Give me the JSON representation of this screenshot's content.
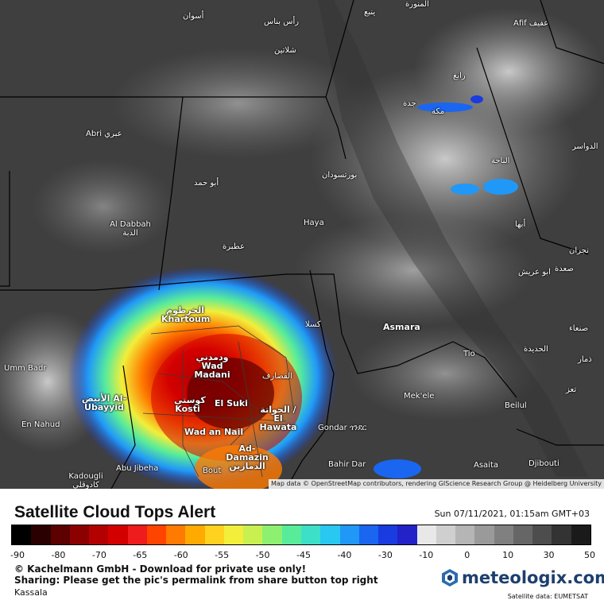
{
  "map": {
    "attribution": "Map data © OpenStreetMap contributors, rendering GIScience Research Group @ Heidelberg University",
    "cities": [
      {
        "label": "أسوان"
      },
      {
        "label": "رأس بناس"
      },
      {
        "label": "شلاتين"
      },
      {
        "label": "ينبع"
      },
      {
        "label": "المنورة"
      },
      {
        "label": "Afif عفيف"
      },
      {
        "label": "Abri عبري"
      },
      {
        "label": "أبو حمد"
      },
      {
        "label": "Al Dabbah الدبة"
      },
      {
        "label": "بورتسودان"
      },
      {
        "label": "Haya"
      },
      {
        "label": "عطبرة"
      },
      {
        "label": "الخرطوم Khartoum"
      },
      {
        "label": "كسلا"
      },
      {
        "label": "Asmara"
      },
      {
        "label": "ودمدني Wad Madani"
      },
      {
        "label": "القضارف"
      },
      {
        "label": "Umm Badr"
      },
      {
        "label": "الأبيض Al-Ubayyid"
      },
      {
        "label": "كوستي Kosti"
      },
      {
        "label": "El Suki"
      },
      {
        "label": "الحواتة / El Hawata"
      },
      {
        "label": "En Nahud"
      },
      {
        "label": "Wad an Nail"
      },
      {
        "label": "Ad-Damazin الدمازين"
      },
      {
        "label": "Gondar ጎንደር"
      },
      {
        "label": "Mek'ele"
      },
      {
        "label": "Abu Jibeha"
      },
      {
        "label": "Kadougli كادوقلي"
      },
      {
        "label": "Bout"
      },
      {
        "label": "Bahir Dar"
      },
      {
        "label": "Asaita"
      },
      {
        "label": "Djibouti"
      },
      {
        "label": "Beilul"
      },
      {
        "label": "Tio"
      },
      {
        "label": "الحديدة"
      },
      {
        "label": "صنعاء"
      },
      {
        "label": "ذمار"
      },
      {
        "label": "تعز"
      },
      {
        "label": "أبها"
      },
      {
        "label": "ابو عريش"
      },
      {
        "label": "صعدة"
      },
      {
        "label": "نجران"
      },
      {
        "label": "الباحة"
      },
      {
        "label": "جدة"
      },
      {
        "label": "مكة"
      },
      {
        "label": "رابغ"
      },
      {
        "label": "الدواسر"
      },
      {
        "label": "Kassala"
      }
    ]
  },
  "legend": {
    "title": "Satellite Cloud Tops Alert",
    "datetime": "Sun 07/11/2021, 01:15am GMT+03",
    "ticks": [
      "-90",
      "-80",
      "-70",
      "-65",
      "-60",
      "-55",
      "-50",
      "-45",
      "-40",
      "-30",
      "-10",
      "0",
      "10",
      "30",
      "50"
    ],
    "colors": [
      "#000000",
      "#2a0000",
      "#5c0000",
      "#8b0000",
      "#b30000",
      "#d40000",
      "#ee1c1c",
      "#ff4400",
      "#ff7a00",
      "#ffaa00",
      "#ffd21f",
      "#f2ee3a",
      "#c8f050",
      "#8ef070",
      "#58ec9a",
      "#3ce0c8",
      "#28c8f0",
      "#2098f8",
      "#1a66f0",
      "#1a3be0",
      "#2222c8",
      "#e8e8e8",
      "#cfcfcf",
      "#b5b5b5",
      "#9a9a9a",
      "#808080",
      "#666666",
      "#4d4d4d",
      "#333333",
      "#1a1a1a"
    ],
    "copyright": "© Kachelmann GmbH - Download for private use only!",
    "sharing": "Sharing: Please get the pic's permalink from share button top right",
    "location": "Kassala",
    "brand": "meteologix.com",
    "satellite_data": "Satellite data: EUMETSAT",
    "brand_color": "#1d3f6e"
  }
}
